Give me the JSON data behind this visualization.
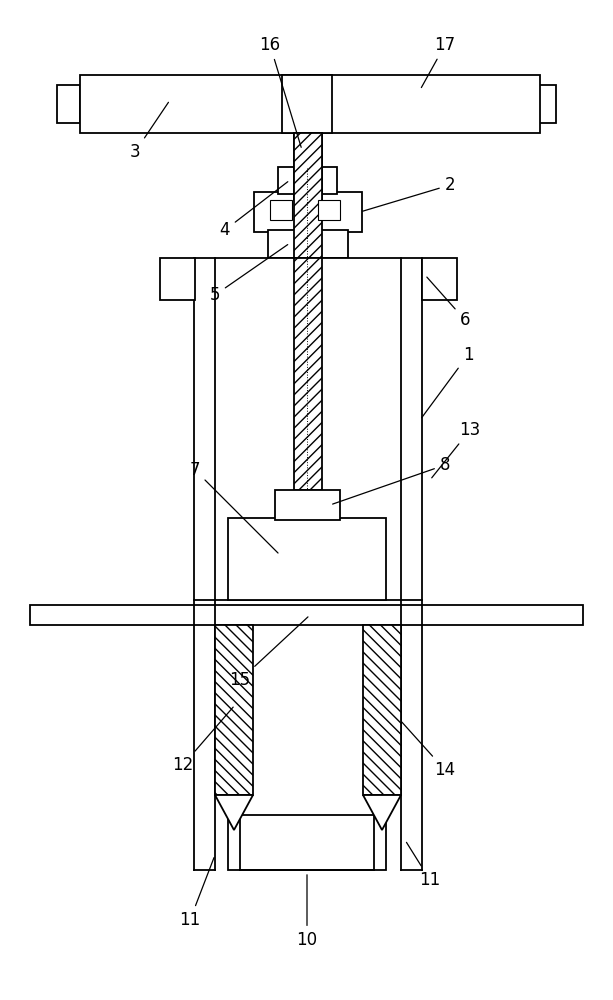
{
  "bg_color": "#ffffff",
  "lw": 1.3,
  "figsize": [
    6.13,
    10.0
  ],
  "dpi": 100
}
